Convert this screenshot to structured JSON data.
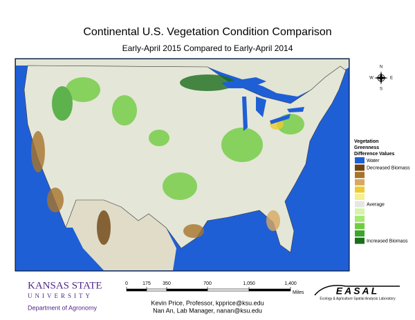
{
  "header": {
    "title": "Continental U.S. Vegetation Condition Comparison",
    "subtitle": "Early-April 2015 Compared to Early-April 2014"
  },
  "compass": {
    "n": "N",
    "e": "E",
    "s": "S",
    "w": "W"
  },
  "legend": {
    "title_lines": [
      "Vegetation",
      "Greenness",
      "Difference Values"
    ],
    "items": [
      {
        "color": "#1f5fd6",
        "label": "Water"
      },
      {
        "color": "#6e4410",
        "label": "Decreased Biomass"
      },
      {
        "color": "#a8742c"
      },
      {
        "color": "#d8a860"
      },
      {
        "color": "#eccc30"
      },
      {
        "color": "#f6ee90"
      },
      {
        "color": "#e6e6e6",
        "label": "Average"
      },
      {
        "color": "#d4f4a8"
      },
      {
        "color": "#a6e870"
      },
      {
        "color": "#70cc40"
      },
      {
        "color": "#3ca62c"
      },
      {
        "color": "#1c6e1c",
        "label": "Increased Biomass"
      }
    ]
  },
  "scale_bar": {
    "ticks": [
      "0",
      "175",
      "350",
      "700",
      "1,050",
      "1,400"
    ],
    "unit": "Miles"
  },
  "credits": [
    "Kevin Price, Professor, kpprice@ksu.edu",
    "Nan An, Lab Manager, nanan@ksu.edu"
  ],
  "ksu_logo": {
    "name": "KANSAS STATE",
    "university": "UNIVERSITY",
    "department": "Department of Agronomy"
  },
  "easal_logo": {
    "name": "EASAL",
    "subtitle": "Ecology & Agriculture Spatial Analysis Laboratory"
  }
}
